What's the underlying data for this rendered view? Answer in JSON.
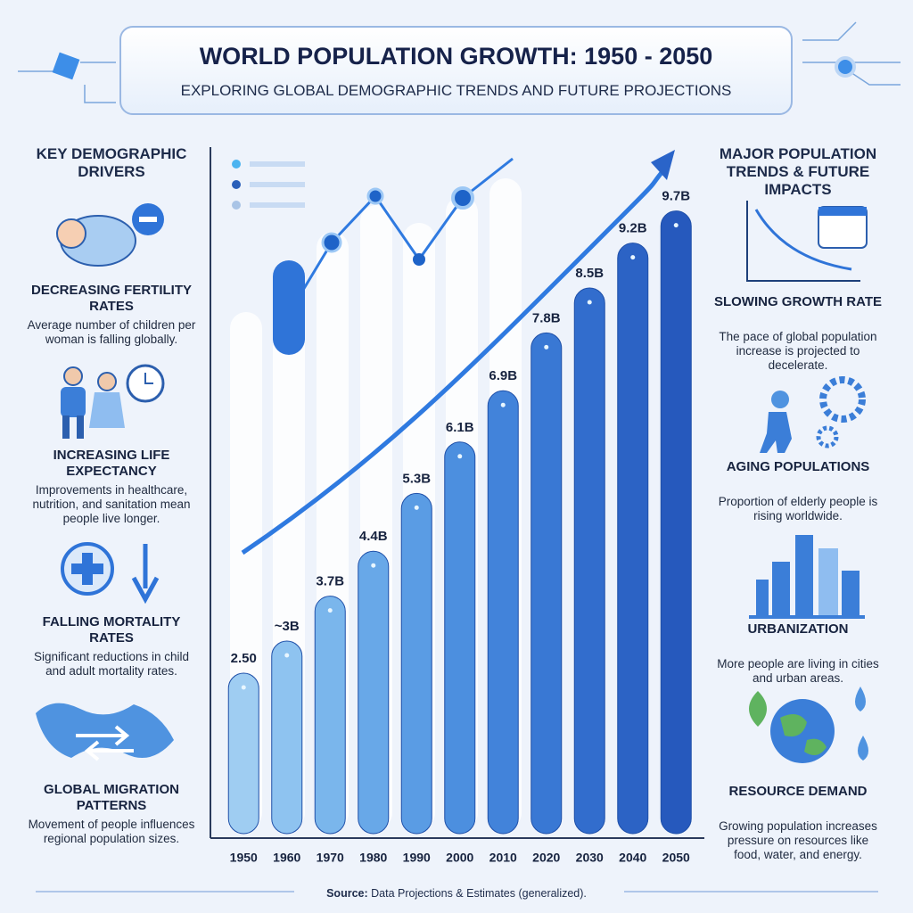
{
  "header": {
    "title": "WORLD POPULATION GROWTH: 1950 - 2050",
    "subtitle": "EXPLORING GLOBAL DEMOGRAPHIC TRENDS AND FUTURE PROJECTIONS"
  },
  "chart_data": {
    "type": "bar",
    "categories": [
      "1950",
      "1960",
      "1970",
      "1980",
      "1990",
      "2000",
      "2010",
      "2020",
      "2030",
      "2040",
      "2050"
    ],
    "values": [
      2.5,
      3,
      3.7,
      4.4,
      5.3,
      6.1,
      6.9,
      7.8,
      8.5,
      9.2,
      9.7
    ],
    "value_labels": [
      "2.50",
      "~3B",
      "3.7B",
      "4.4B",
      "5.3B",
      "6.1B",
      "6.9B",
      "7.8B",
      "8.5B",
      "9.2B",
      "9.7B"
    ],
    "colors": [
      "#9fcdf2",
      "#8ec3f0",
      "#7ab6ec",
      "#68a8e8",
      "#5a9ce4",
      "#4c8fdf",
      "#4283da",
      "#3978d4",
      "#326dcd",
      "#2c63c5",
      "#2659bd"
    ]
  },
  "left_panel": {
    "heading": "KEY DEMOGRAPHIC DRIVERS",
    "items": [
      {
        "title": "DECREASING FERTILITY RATES",
        "text": "Average number of children per woman is falling globally."
      },
      {
        "title": "INCREASING LIFE EXPECTANCY",
        "text": "Improvements in healthcare, nutrition, and sanitation mean people live longer."
      },
      {
        "title": "FALLING MORTALITY RATES",
        "text": "Significant reductions in child and adult mortality rates."
      },
      {
        "title": "GLOBAL MIGRATION PATTERNS",
        "text": "Movement of people influences regional population sizes."
      }
    ]
  },
  "right_panel": {
    "heading": "MAJOR POPULATION TRENDS & FUTURE IMPACTS",
    "items": [
      {
        "title": "SLOWING GROWTH RATE",
        "text": "The pace of global population increase is projected to decelerate."
      },
      {
        "title": "AGING POPULATIONS",
        "text": "Proportion of elderly people is rising worldwide."
      },
      {
        "title": "URBANIZATION",
        "text": "More people are living in cities and urban areas."
      },
      {
        "title": "RESOURCE DEMAND",
        "text": "Growing population increases pressure on resources like food, water, and energy."
      }
    ]
  },
  "source": {
    "label": "Source:",
    "text": "Data Projections & Estimates (generalized)."
  }
}
